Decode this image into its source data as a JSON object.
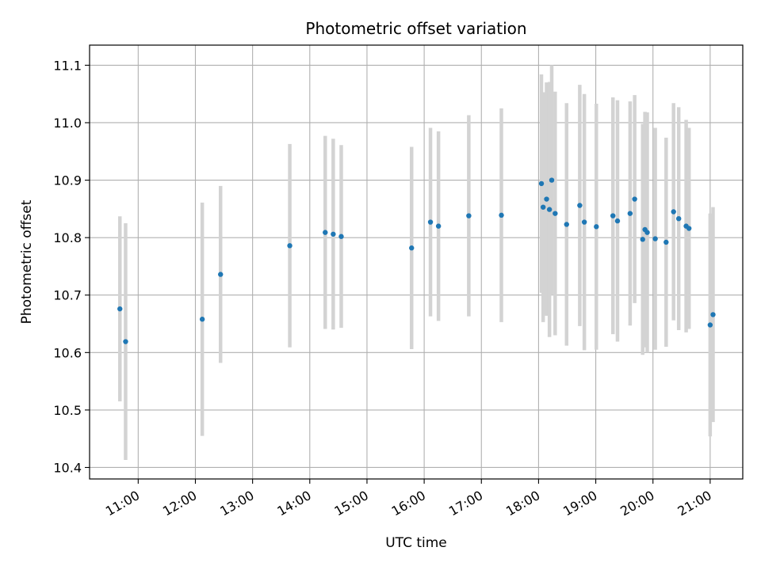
{
  "chart_data": {
    "type": "scatter",
    "title": "Photometric offset variation",
    "xlabel": "UTC time",
    "ylabel": "Photometric offset",
    "x_unit": "hours UTC",
    "xlim": [
      10.15,
      21.57
    ],
    "ylim": [
      10.38,
      11.135
    ],
    "grid": true,
    "marker_color": "#1f77b4",
    "errorbar_color": "#d3d3d3",
    "x_ticks": [
      {
        "value": 11,
        "label": "11:00"
      },
      {
        "value": 12,
        "label": "12:00"
      },
      {
        "value": 13,
        "label": "13:00"
      },
      {
        "value": 14,
        "label": "14:00"
      },
      {
        "value": 15,
        "label": "15:00"
      },
      {
        "value": 16,
        "label": "16:00"
      },
      {
        "value": 17,
        "label": "17:00"
      },
      {
        "value": 18,
        "label": "18:00"
      },
      {
        "value": 19,
        "label": "19:00"
      },
      {
        "value": 20,
        "label": "20:00"
      },
      {
        "value": 21,
        "label": "21:00"
      }
    ],
    "y_ticks": [
      {
        "value": 10.4,
        "label": "10.4"
      },
      {
        "value": 10.5,
        "label": "10.5"
      },
      {
        "value": 10.6,
        "label": "10.6"
      },
      {
        "value": 10.7,
        "label": "10.7"
      },
      {
        "value": 10.8,
        "label": "10.8"
      },
      {
        "value": 10.9,
        "label": "10.9"
      },
      {
        "value": 11.0,
        "label": "11.0"
      },
      {
        "value": 11.1,
        "label": "11.1"
      }
    ],
    "points": [
      {
        "x": 10.68,
        "y": 10.676,
        "err": 0.161
      },
      {
        "x": 10.78,
        "y": 10.619,
        "err": 0.206
      },
      {
        "x": 12.12,
        "y": 10.658,
        "err": 0.203
      },
      {
        "x": 12.44,
        "y": 10.736,
        "err": 0.154
      },
      {
        "x": 13.65,
        "y": 10.786,
        "err": 0.177
      },
      {
        "x": 14.27,
        "y": 10.809,
        "err": 0.168
      },
      {
        "x": 14.41,
        "y": 10.806,
        "err": 0.166
      },
      {
        "x": 14.55,
        "y": 10.802,
        "err": 0.159
      },
      {
        "x": 15.78,
        "y": 10.782,
        "err": 0.176
      },
      {
        "x": 16.11,
        "y": 10.827,
        "err": 0.164
      },
      {
        "x": 16.25,
        "y": 10.82,
        "err": 0.165
      },
      {
        "x": 16.78,
        "y": 10.838,
        "err": 0.175
      },
      {
        "x": 17.35,
        "y": 10.839,
        "err": 0.186
      },
      {
        "x": 18.05,
        "y": 10.894,
        "err": 0.19
      },
      {
        "x": 18.08,
        "y": 10.853,
        "err": 0.2
      },
      {
        "x": 18.14,
        "y": 10.867,
        "err": 0.203
      },
      {
        "x": 18.19,
        "y": 10.849,
        "err": 0.222
      },
      {
        "x": 18.23,
        "y": 10.9,
        "err": 0.2
      },
      {
        "x": 18.29,
        "y": 10.842,
        "err": 0.212
      },
      {
        "x": 18.49,
        "y": 10.823,
        "err": 0.211
      },
      {
        "x": 18.72,
        "y": 10.856,
        "err": 0.21
      },
      {
        "x": 18.8,
        "y": 10.827,
        "err": 0.223
      },
      {
        "x": 19.01,
        "y": 10.819,
        "err": 0.214
      },
      {
        "x": 19.3,
        "y": 10.838,
        "err": 0.206
      },
      {
        "x": 19.38,
        "y": 10.829,
        "err": 0.21
      },
      {
        "x": 19.6,
        "y": 10.842,
        "err": 0.195
      },
      {
        "x": 19.68,
        "y": 10.867,
        "err": 0.181
      },
      {
        "x": 19.82,
        "y": 10.797,
        "err": 0.201
      },
      {
        "x": 19.86,
        "y": 10.814,
        "err": 0.205
      },
      {
        "x": 19.9,
        "y": 10.809,
        "err": 0.209
      },
      {
        "x": 20.04,
        "y": 10.798,
        "err": 0.193
      },
      {
        "x": 20.23,
        "y": 10.792,
        "err": 0.182
      },
      {
        "x": 20.36,
        "y": 10.845,
        "err": 0.189
      },
      {
        "x": 20.45,
        "y": 10.833,
        "err": 0.194
      },
      {
        "x": 20.58,
        "y": 10.82,
        "err": 0.185
      },
      {
        "x": 20.63,
        "y": 10.816,
        "err": 0.175
      },
      {
        "x": 21.0,
        "y": 10.648,
        "err": 0.194
      },
      {
        "x": 21.05,
        "y": 10.666,
        "err": 0.187
      }
    ]
  }
}
